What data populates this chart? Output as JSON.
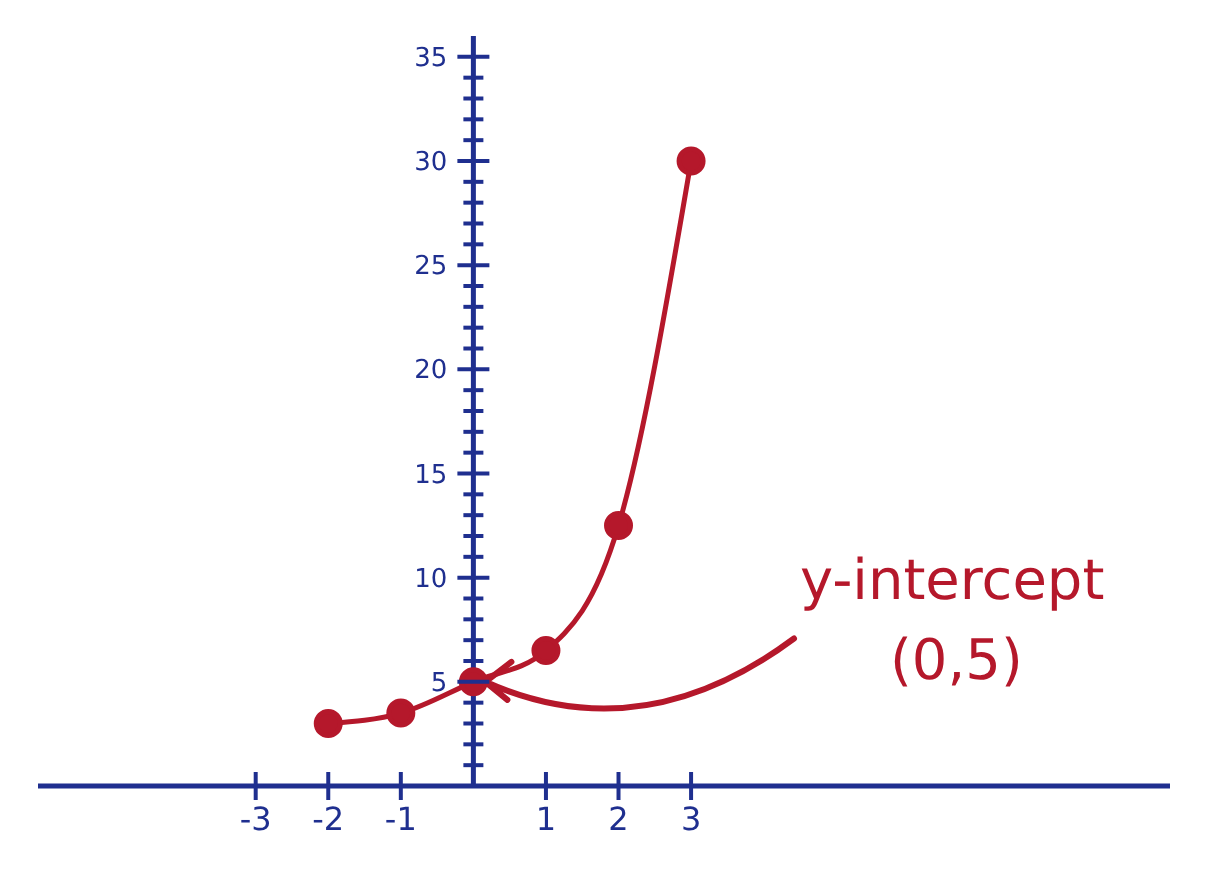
{
  "chart_data": {
    "type": "line",
    "x": [
      -2,
      -1,
      0,
      1,
      2,
      3
    ],
    "series": [
      {
        "color": "#b5182b",
        "values": [
          3,
          3.5,
          5,
          6.5,
          12.5,
          30
        ]
      }
    ],
    "marker": "circle",
    "line_style": "solid",
    "grid": false,
    "legend": false,
    "xlim": [
      -6,
      9.6
    ],
    "xticks": [
      -3,
      -2,
      -1,
      1,
      2,
      3
    ],
    "ylim": [
      0,
      36
    ],
    "yticks": [
      {
        "value": 1,
        "label": null
      },
      {
        "value": 2,
        "label": null
      },
      {
        "value": 3,
        "label": null
      },
      {
        "value": 4,
        "label": null
      },
      5,
      {
        "value": 6,
        "label": null
      },
      {
        "value": 7,
        "label": null
      },
      {
        "value": 8,
        "label": null
      },
      {
        "value": 9,
        "label": null
      },
      10,
      {
        "value": 11,
        "label": null
      },
      {
        "value": 12,
        "label": null
      },
      {
        "value": 13,
        "label": null
      },
      {
        "value": 14,
        "label": null
      },
      15,
      {
        "value": 16,
        "label": null
      },
      {
        "value": 17,
        "label": null
      },
      {
        "value": 18,
        "label": null
      },
      {
        "value": 19,
        "label": null
      },
      20,
      {
        "value": 21,
        "label": null
      },
      {
        "value": 22,
        "label": null
      },
      {
        "value": 23,
        "label": null
      },
      {
        "value": 24,
        "label": null
      },
      25,
      {
        "value": 26,
        "label": null
      },
      {
        "value": 27,
        "label": null
      },
      {
        "value": 28,
        "label": null
      },
      {
        "value": 29,
        "label": null
      },
      30,
      {
        "value": 31,
        "label": null
      },
      {
        "value": 32,
        "label": null
      },
      {
        "value": 33,
        "label": null
      },
      {
        "value": 34,
        "label": null
      },
      35
    ],
    "annotations": [
      {
        "text": "y-intercept\n(0,5)",
        "x": 0,
        "y": 5
      }
    ]
  }
}
